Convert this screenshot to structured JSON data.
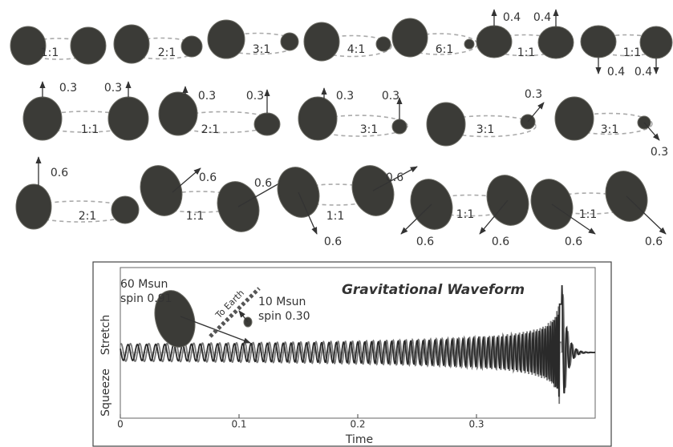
{
  "binaries": [
    {
      "ratio": "1:1"
    },
    {
      "ratio": "2:1"
    },
    {
      "ratio": "3:1"
    },
    {
      "ratio": "4:1"
    },
    {
      "ratio": "6:1"
    },
    {
      "ratio": "1:1",
      "spins": [
        "0.4",
        "0.4"
      ]
    },
    {
      "ratio": "1:1",
      "spins": [
        "0.4",
        "0.4"
      ]
    },
    {
      "ratio": "1:1",
      "spins": [
        "0.3",
        "0.3"
      ]
    },
    {
      "ratio": "2:1",
      "spins": [
        "0.3",
        "0.3"
      ]
    },
    {
      "ratio": "3:1",
      "spins": [
        "0.3",
        "0.3"
      ]
    },
    {
      "ratio": "3:1",
      "spins": [
        "0.3"
      ]
    },
    {
      "ratio": "3:1",
      "spins": [
        "0.3"
      ]
    },
    {
      "ratio": "2:1",
      "spins": [
        "0.6"
      ]
    },
    {
      "ratio": "1:1",
      "spins": [
        "0.6",
        "0.6"
      ]
    },
    {
      "ratio": "1:1",
      "spins": [
        "0.6",
        "0.6"
      ]
    },
    {
      "ratio": "1:1",
      "spins": [
        "0.6",
        "0.6"
      ]
    },
    {
      "ratio": "1:1",
      "spins": [
        "0.6",
        "0.6"
      ]
    }
  ],
  "waveform": {
    "title": "Gravitational Waveform",
    "ylabel_top": "Stretch",
    "ylabel_bottom": "Squeeze",
    "xlabel": "Time",
    "xlim": [
      0,
      0.4
    ],
    "xticks": [
      0,
      0.1,
      0.2,
      0.3
    ],
    "annotations": [
      "60 Msun",
      "spin 0.91",
      "To Earth",
      "10 Msun",
      "spin 0.30"
    ]
  }
}
